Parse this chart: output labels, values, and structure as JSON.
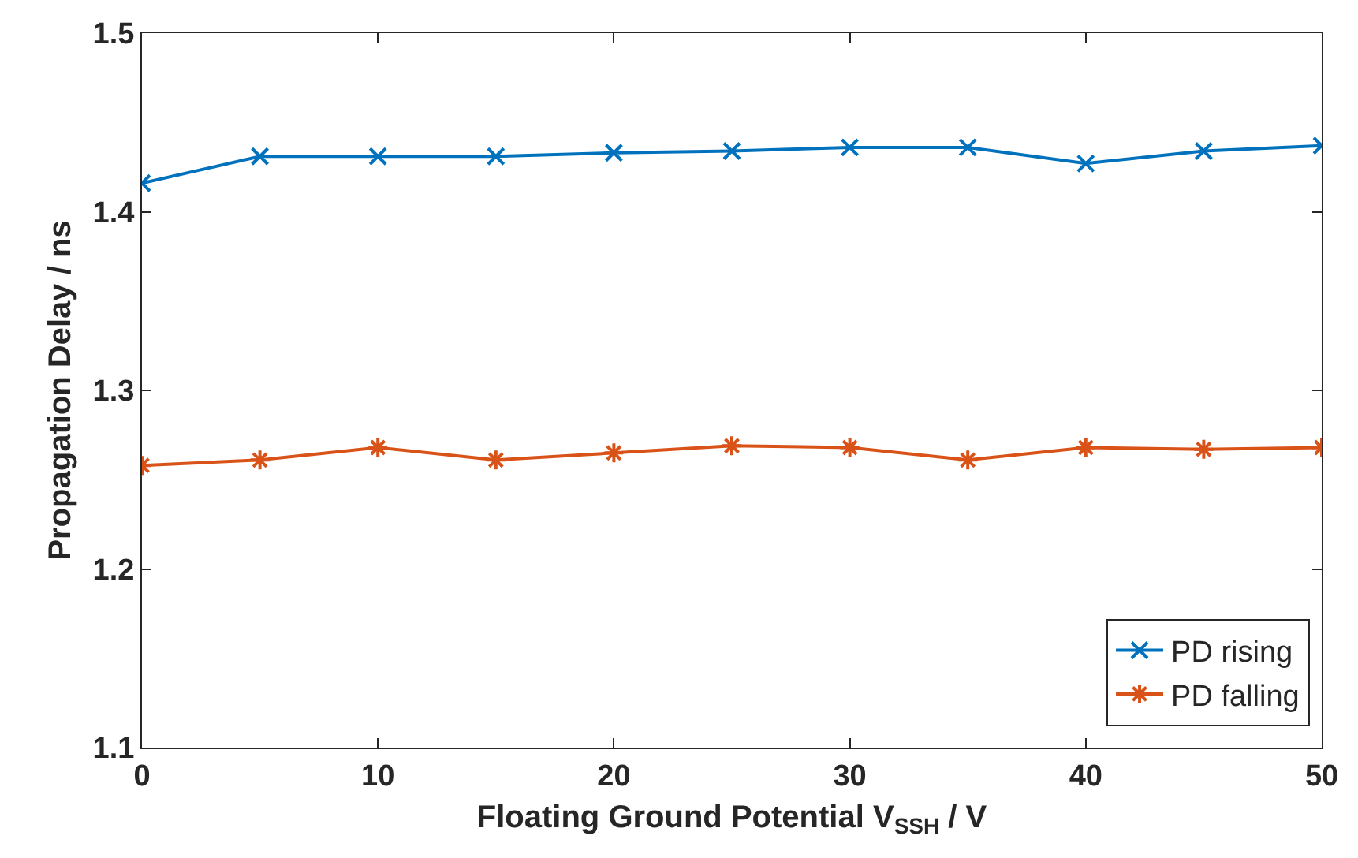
{
  "chart_data": {
    "type": "line",
    "xlabel": "Floating Ground Potential V$_{SSH}$ / V",
    "ylabel": "Propagation Delay / ns",
    "x": [
      0,
      5,
      10,
      15,
      20,
      25,
      30,
      35,
      40,
      45,
      50
    ],
    "series": [
      {
        "name": "PD rising",
        "color": "#0072bd",
        "marker": "cross",
        "values": [
          1.416,
          1.431,
          1.431,
          1.431,
          1.433,
          1.434,
          1.436,
          1.436,
          1.427,
          1.434,
          1.437
        ]
      },
      {
        "name": "PD falling",
        "color": "#d95319",
        "marker": "cross",
        "values": [
          1.258,
          1.261,
          1.268,
          1.261,
          1.265,
          1.269,
          1.268,
          1.261,
          1.268,
          1.267,
          1.268
        ]
      }
    ],
    "xlim": [
      0,
      50
    ],
    "xticks": [
      0,
      10,
      20,
      30,
      40,
      50
    ],
    "ylim": [
      1.1,
      1.5
    ],
    "yticks": [
      1.1,
      1.2,
      1.3,
      1.4,
      1.5
    ],
    "grid": false,
    "legend": "bottom right",
    "line_style": "solid"
  }
}
